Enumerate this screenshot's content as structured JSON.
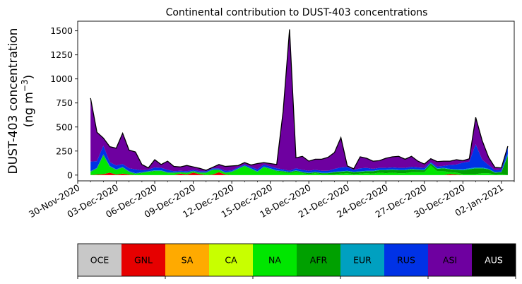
{
  "chart_data": {
    "type": "area",
    "title": "Continental contribution to DUST-403 concentrations",
    "ylabel_line1": "DUST-403 concentration",
    "ylabel_line2": "(ng m",
    "ylabel_unit_exp": "−3",
    "ylabel_close": ")",
    "ylim": [
      -60,
      1600
    ],
    "yticks": [
      0,
      250,
      500,
      750,
      1000,
      1250,
      1500
    ],
    "xlim": [
      0,
      34
    ],
    "xticks": [
      {
        "day": 0,
        "label": "30-Nov-2020"
      },
      {
        "day": 3,
        "label": "03-Dec-2020"
      },
      {
        "day": 6,
        "label": "06-Dec-2020"
      },
      {
        "day": 9,
        "label": "09-Dec-2020"
      },
      {
        "day": 12,
        "label": "12-Dec-2020"
      },
      {
        "day": 15,
        "label": "15-Dec-2020"
      },
      {
        "day": 18,
        "label": "18-Dec-2020"
      },
      {
        "day": 21,
        "label": "21-Dec-2020"
      },
      {
        "day": 24,
        "label": "24-Dec-2020"
      },
      {
        "day": 27,
        "label": "27-Dec-2020"
      },
      {
        "day": 30,
        "label": "30-Dec-2020"
      },
      {
        "day": 33,
        "label": "02-Jan-2021"
      }
    ],
    "x": [
      1.0,
      1.5,
      2.0,
      2.5,
      3.0,
      3.5,
      4.0,
      4.5,
      5.0,
      5.5,
      6.0,
      6.5,
      7.0,
      7.5,
      8.0,
      8.5,
      9.0,
      9.5,
      10.0,
      10.5,
      11.0,
      11.5,
      12.0,
      12.5,
      13.0,
      13.5,
      14.0,
      14.5,
      15.0,
      15.5,
      16.0,
      16.5,
      17.0,
      17.5,
      18.0,
      18.5,
      19.0,
      19.5,
      20.0,
      20.5,
      21.0,
      21.5,
      22.0,
      22.5,
      23.0,
      23.5,
      24.0,
      24.5,
      25.0,
      25.5,
      26.0,
      26.5,
      27.0,
      27.5,
      28.0,
      28.5,
      29.0,
      29.5,
      30.0,
      30.5,
      31.0,
      31.5,
      32.0,
      32.5,
      33.0,
      33.5
    ],
    "series": [
      {
        "name": "OCE",
        "color": "#c8c8c8",
        "values": [
          0,
          0,
          0,
          0,
          0,
          0,
          0,
          0,
          0,
          0,
          0,
          0,
          0,
          0,
          0,
          0,
          0,
          0,
          0,
          0,
          0,
          0,
          0,
          0,
          0,
          0,
          0,
          0,
          0,
          0,
          0,
          0,
          0,
          0,
          0,
          0,
          0,
          0,
          0,
          0,
          0,
          0,
          0,
          0,
          0,
          0,
          0,
          0,
          0,
          0,
          0,
          0,
          0,
          0,
          0,
          0,
          0,
          0,
          0,
          0,
          0,
          0,
          0,
          0,
          0,
          0
        ]
      },
      {
        "name": "GNL",
        "color": "#e60000",
        "values": [
          0,
          5,
          10,
          25,
          5,
          15,
          5,
          0,
          0,
          0,
          0,
          0,
          0,
          0,
          15,
          5,
          25,
          10,
          0,
          5,
          30,
          5,
          0,
          0,
          0,
          0,
          0,
          0,
          0,
          0,
          0,
          0,
          0,
          0,
          0,
          0,
          0,
          0,
          0,
          0,
          0,
          0,
          0,
          0,
          0,
          0,
          0,
          0,
          0,
          0,
          0,
          0,
          0,
          0,
          0,
          0,
          10,
          5,
          0,
          0,
          0,
          0,
          0,
          0,
          0,
          0
        ]
      },
      {
        "name": "SA",
        "color": "#ffaa00",
        "values": [
          0,
          0,
          0,
          0,
          0,
          0,
          0,
          0,
          0,
          0,
          0,
          0,
          0,
          0,
          0,
          0,
          0,
          0,
          0,
          0,
          0,
          0,
          0,
          0,
          0,
          0,
          0,
          0,
          0,
          0,
          0,
          0,
          0,
          0,
          0,
          0,
          0,
          0,
          0,
          0,
          0,
          0,
          0,
          0,
          0,
          0,
          0,
          0,
          0,
          0,
          0,
          0,
          0,
          0,
          0,
          0,
          0,
          0,
          0,
          0,
          0,
          0,
          0,
          0,
          0,
          0
        ]
      },
      {
        "name": "CA",
        "color": "#c8ff00",
        "values": [
          0,
          0,
          0,
          0,
          0,
          0,
          0,
          0,
          0,
          0,
          0,
          0,
          0,
          0,
          0,
          0,
          0,
          0,
          0,
          0,
          0,
          0,
          0,
          0,
          0,
          0,
          0,
          0,
          0,
          0,
          0,
          0,
          0,
          0,
          0,
          0,
          0,
          0,
          0,
          0,
          0,
          0,
          0,
          0,
          0,
          0,
          0,
          0,
          0,
          0,
          0,
          0,
          0,
          0,
          0,
          0,
          0,
          0,
          0,
          0,
          0,
          0,
          0,
          0,
          0,
          0
        ]
      },
      {
        "name": "NA",
        "color": "#00e600",
        "values": [
          30,
          60,
          190,
          60,
          45,
          60,
          25,
          10,
          20,
          30,
          40,
          40,
          20,
          20,
          10,
          15,
          10,
          10,
          20,
          45,
          20,
          15,
          30,
          60,
          90,
          60,
          30,
          80,
          60,
          40,
          30,
          20,
          35,
          20,
          10,
          20,
          10,
          10,
          10,
          15,
          20,
          10,
          15,
          20,
          15,
          25,
          20,
          25,
          20,
          20,
          30,
          30,
          30,
          100,
          40,
          40,
          20,
          20,
          10,
          10,
          10,
          20,
          20,
          5,
          10,
          0
        ]
      },
      {
        "name": "AFR",
        "color": "#00a000",
        "values": [
          5,
          5,
          10,
          5,
          5,
          5,
          5,
          5,
          5,
          5,
          5,
          5,
          5,
          5,
          5,
          5,
          5,
          5,
          5,
          5,
          5,
          5,
          5,
          5,
          5,
          5,
          5,
          5,
          5,
          5,
          10,
          10,
          10,
          10,
          10,
          10,
          10,
          10,
          20,
          20,
          20,
          20,
          20,
          20,
          25,
          25,
          30,
          30,
          30,
          30,
          30,
          25,
          20,
          20,
          25,
          30,
          30,
          30,
          40,
          50,
          60,
          50,
          40,
          20,
          20,
          200
        ]
      },
      {
        "name": "EUR",
        "color": "#00a0c0",
        "values": [
          5,
          5,
          5,
          5,
          5,
          5,
          5,
          5,
          5,
          5,
          5,
          5,
          5,
          5,
          5,
          5,
          5,
          5,
          5,
          5,
          5,
          5,
          5,
          5,
          5,
          5,
          5,
          5,
          5,
          5,
          5,
          5,
          5,
          5,
          5,
          5,
          5,
          5,
          5,
          5,
          5,
          5,
          5,
          5,
          5,
          5,
          5,
          5,
          5,
          5,
          5,
          5,
          5,
          5,
          5,
          5,
          5,
          5,
          10,
          10,
          10,
          10,
          5,
          5,
          5,
          20
        ]
      },
      {
        "name": "RUS",
        "color": "#0032e6",
        "values": [
          100,
          70,
          90,
          40,
          40,
          30,
          30,
          40,
          20,
          15,
          30,
          25,
          25,
          10,
          10,
          10,
          10,
          10,
          10,
          10,
          10,
          15,
          10,
          10,
          10,
          15,
          20,
          20,
          20,
          20,
          15,
          10,
          20,
          20,
          20,
          20,
          20,
          20,
          30,
          40,
          40,
          20,
          30,
          30,
          20,
          20,
          20,
          20,
          20,
          20,
          20,
          20,
          20,
          10,
          20,
          20,
          40,
          50,
          70,
          70,
          240,
          80,
          40,
          20,
          20,
          70
        ]
      },
      {
        "name": "ASI",
        "color": "#6e00a0",
        "values": [
          660,
          300,
          80,
          160,
          180,
          320,
          190,
          180,
          60,
          20,
          80,
          35,
          90,
          50,
          40,
          60,
          30,
          30,
          10,
          10,
          40,
          45,
          45,
          20,
          20,
          20,
          60,
          20,
          30,
          40,
          600,
          1470,
          110,
          140,
          100,
          110,
          120,
          140,
          170,
          310,
          10,
          10,
          120,
          100,
          80,
          75,
          100,
          110,
          120,
          90,
          110,
          65,
          40,
          35,
          50,
          50,
          40,
          50,
          20,
          30,
          280,
          200,
          80,
          30,
          20,
          10
        ]
      },
      {
        "name": "AUS",
        "color": "#000000",
        "values": [
          0,
          0,
          0,
          0,
          0,
          0,
          0,
          0,
          0,
          0,
          0,
          0,
          0,
          0,
          0,
          0,
          0,
          0,
          0,
          0,
          0,
          0,
          0,
          0,
          0,
          0,
          0,
          0,
          0,
          0,
          0,
          0,
          0,
          0,
          0,
          0,
          0,
          0,
          0,
          0,
          0,
          0,
          0,
          0,
          0,
          0,
          0,
          0,
          0,
          0,
          0,
          0,
          0,
          0,
          0,
          0,
          0,
          0,
          0,
          0,
          0,
          0,
          0,
          0,
          0,
          0
        ]
      }
    ],
    "legend": {
      "placement": "bottom",
      "entries": [
        {
          "label": "OCE",
          "color": "#c8c8c8",
          "text_color": "#000000"
        },
        {
          "label": "GNL",
          "color": "#e60000",
          "text_color": "#000000"
        },
        {
          "label": "SA",
          "color": "#ffaa00",
          "text_color": "#000000"
        },
        {
          "label": "CA",
          "color": "#c8ff00",
          "text_color": "#000000"
        },
        {
          "label": "NA",
          "color": "#00e600",
          "text_color": "#000000"
        },
        {
          "label": "AFR",
          "color": "#00a000",
          "text_color": "#000000"
        },
        {
          "label": "EUR",
          "color": "#00a0c0",
          "text_color": "#000000"
        },
        {
          "label": "RUS",
          "color": "#0032e6",
          "text_color": "#000000"
        },
        {
          "label": "ASI",
          "color": "#6e00a0",
          "text_color": "#000000"
        },
        {
          "label": "AUS",
          "color": "#000000",
          "text_color": "#ffffff"
        }
      ]
    },
    "grid": false
  }
}
